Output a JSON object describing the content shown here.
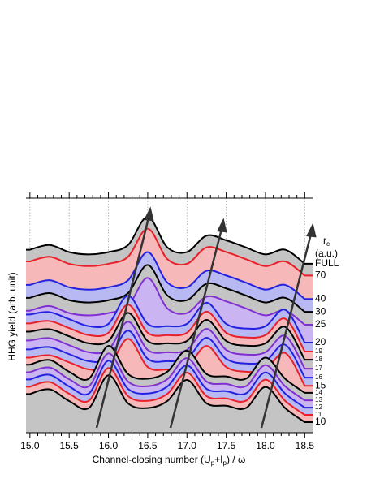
{
  "chart_data": {
    "type": "waterfall",
    "ylabel": "HHG yield (arb. unit)",
    "xlabel": [
      "Channel-closing number (U",
      "p",
      "+I",
      "p",
      ") / ω"
    ],
    "legend_title": "r",
    "legend_title_sub": "c",
    "legend_unit": "(a.u.)",
    "xlim": [
      14.95,
      18.6
    ],
    "ylim": [
      0,
      100
    ],
    "xticks": [
      {
        "value": 15,
        "label": "15.0"
      },
      15.5,
      {
        "value": 16,
        "label": "16.0"
      },
      16.5,
      {
        "value": 17,
        "label": "17.0"
      },
      17.5,
      {
        "value": 18,
        "label": "18.0"
      },
      18.5
    ],
    "xminorticks": [
      15.1,
      15.2,
      15.3,
      15.4,
      15.6,
      15.7,
      15.8,
      15.9,
      16.1,
      16.2,
      16.3,
      16.4,
      16.6,
      16.7,
      16.8,
      16.9,
      17.1,
      17.2,
      17.3,
      17.4,
      17.6,
      17.7,
      17.8,
      17.9,
      18.1,
      18.2,
      18.3,
      18.4
    ],
    "grid": true,
    "x": [
      15.0,
      15.25,
      15.5,
      15.75,
      16.0,
      16.25,
      16.5,
      16.75,
      17.0,
      17.25,
      17.5,
      17.75,
      18.0,
      18.25,
      18.5
    ],
    "series": [
      {
        "name": "10",
        "color": "#000000",
        "fill": "#c4c4c4",
        "values": [
          16.5,
          18.5,
          13.5,
          10.5,
          24.5,
          12.5,
          10.5,
          13.5,
          22.5,
          12.5,
          11.5,
          10.5,
          19.5,
          10.5,
          4.5
        ]
      },
      {
        "name": "11",
        "color": "#e8202a",
        "fill": "#f6b8b8",
        "values": [
          19.6,
          21.6,
          16.6,
          13.6,
          27.6,
          15.6,
          13.6,
          16.6,
          25.6,
          15.6,
          14.6,
          13.6,
          22.6,
          13.6,
          7.6
        ]
      },
      {
        "name": "12",
        "color": "#2222e0",
        "fill": "#b8b8f2",
        "values": [
          22.7,
          24.7,
          19.7,
          16.7,
          30.7,
          18.7,
          16.7,
          19.7,
          28.7,
          18.7,
          17.7,
          16.7,
          25.7,
          16.7,
          10.7
        ]
      },
      {
        "name": "13",
        "color": "#8030d0",
        "fill": "#cbb4f2",
        "values": [
          25.8,
          27.8,
          22.8,
          19.8,
          33.8,
          21.8,
          19.8,
          22.8,
          31.8,
          21.8,
          20.8,
          19.8,
          28.8,
          19.8,
          13.8
        ]
      },
      {
        "name": "14",
        "color": "#000000",
        "fill": "#c4c4c4",
        "values": [
          29,
          31,
          26,
          23,
          37,
          25,
          23,
          26,
          35,
          25,
          24,
          23,
          32,
          23,
          17
        ]
      },
      {
        "name": "15",
        "color": "#e8202a",
        "fill": "#f6b8b8",
        "values": [
          32,
          33,
          30,
          27,
          28,
          40,
          28,
          27,
          28,
          37,
          28,
          26,
          27,
          34,
          20
        ]
      },
      {
        "name": "16",
        "color": "#2222e0",
        "fill": "#b8b8f2",
        "values": [
          35.5,
          36.5,
          33.5,
          30.5,
          31.5,
          43.5,
          31.5,
          30.5,
          31.5,
          40.5,
          31.5,
          29.5,
          30.5,
          37.5,
          23.5
        ]
      },
      {
        "name": "17",
        "color": "#8030d0",
        "fill": "#cbb4f2",
        "values": [
          39.3,
          40.3,
          37.3,
          34.3,
          35.3,
          47.3,
          35.3,
          34.3,
          35.3,
          44.3,
          35.3,
          33.3,
          34.3,
          41.3,
          27.3
        ]
      },
      {
        "name": "18",
        "color": "#000000",
        "fill": "#c4c4c4",
        "values": [
          43.1,
          44.1,
          41.1,
          38.1,
          39.1,
          51.1,
          39.1,
          38.1,
          39.1,
          48.1,
          39.1,
          37.1,
          38.1,
          45.1,
          31.1
        ]
      },
      {
        "name": "19",
        "color": "#e8202a",
        "fill": "#f6b8b8",
        "values": [
          46.6,
          47.6,
          44.6,
          41.6,
          42.6,
          54.6,
          42.6,
          41.6,
          42.6,
          51.6,
          42.6,
          40.6,
          41.6,
          48.6,
          34.6
        ]
      },
      {
        "name": "20",
        "color": "#2222e0",
        "fill": "#b8b8f2",
        "values": [
          50.4,
          51.4,
          48.4,
          45.4,
          46.4,
          58.4,
          46.4,
          45.4,
          46.4,
          55.4,
          46.4,
          44.4,
          45.4,
          52.4,
          38.4
        ]
      },
      {
        "name": "25",
        "color": "#8030d0",
        "fill": "#cbb4f2",
        "values": [
          52,
          54,
          51,
          50,
          51,
          54,
          66,
          53,
          51,
          58,
          56,
          53,
          50,
          52,
          46
        ]
      },
      {
        "name": "30",
        "color": "#000000",
        "fill": "#c4c4c4",
        "values": [
          57.5,
          59.5,
          56.5,
          55.5,
          56.5,
          59.5,
          71.5,
          58.5,
          56.5,
          63.5,
          61.5,
          58.5,
          55.5,
          57.5,
          51.5
        ]
      },
      {
        "name": "40",
        "color": "#2222e0",
        "fill": "#b8b8f2",
        "values": [
          63,
          65,
          62,
          61,
          62,
          65,
          77,
          64,
          62,
          69,
          67,
          64,
          61,
          63,
          57
        ]
      },
      {
        "name": "70",
        "color": "#e8202a",
        "fill": "#f6b8b8",
        "values": [
          73,
          75,
          72,
          71,
          72,
          75,
          87,
          74,
          72,
          79,
          77,
          74,
          71,
          73,
          67
        ]
      },
      {
        "name": "FULL",
        "color": "#000000",
        "fill": "#c4c4c4",
        "values": [
          78,
          80,
          77,
          76,
          77,
          80,
          92,
          79,
          77,
          84,
          82,
          79,
          76,
          78,
          72
        ]
      }
    ]
  }
}
